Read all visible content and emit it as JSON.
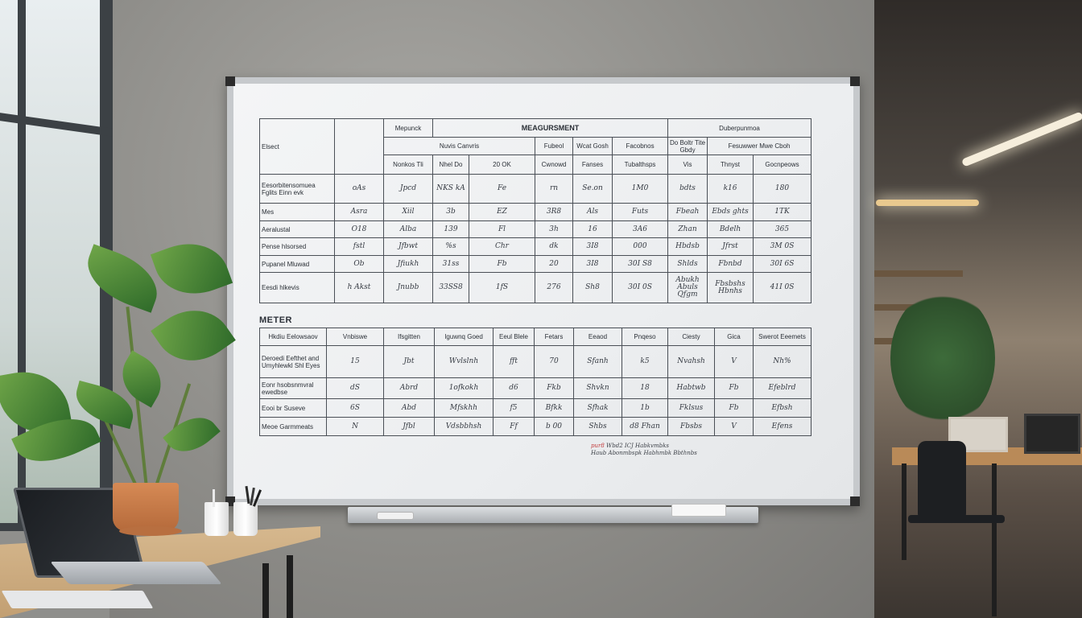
{
  "scene": {
    "colors": {
      "wall": "#8f8e8a",
      "board": "#eef0f2",
      "frame": "#c6c9cc",
      "plant": "#4f8f3a",
      "pot": "#c97b48",
      "desk": "#cfae82"
    },
    "icons": [
      "whiteboard",
      "plant",
      "laptop",
      "pen-cup",
      "marker",
      "eraser",
      "office-chair"
    ]
  },
  "table1": {
    "header_top": [
      "Mepunck",
      "MEAGURSMENT",
      "Duberpunmoa"
    ],
    "header_mid": [
      "Nuvis Canvris",
      "Fubeol",
      "Wcat Gosh",
      "Facobnos",
      "Do Boltr Tite Gbdy",
      "Fesuwwer Mwe Cboh"
    ],
    "header_bottom": [
      "Nonkos Tli",
      "Nhel Do",
      "20 OK",
      "Cwnowd",
      "Fanses",
      "Tubalthsps",
      "Vis",
      "Thnyst",
      "Gocnpeows"
    ],
    "corner_label": "Elsect",
    "rows": [
      {
        "label": "Eesorbitensomuea Fglits Einn evk",
        "cells": [
          "oAs",
          "Jpcd",
          "NKS kA",
          "Fe",
          "rn",
          "Se.on",
          "1M0",
          "bdts",
          "k16",
          "180"
        ]
      },
      {
        "label": "Mes",
        "cells": [
          "Asra",
          "Xiil",
          "3b",
          "EZ",
          "3R8",
          "Als",
          "Futs",
          "Fbeah",
          "Ebds ghts",
          "1TK"
        ]
      },
      {
        "label": "Aeralustal",
        "cells": [
          "O18",
          "Alba",
          "139",
          "Fl",
          "3h",
          "16",
          "3A6",
          "Zhan",
          "Bdelh",
          "365"
        ]
      },
      {
        "label": "Pense hlsorsed",
        "cells": [
          "fstl",
          "Jfbwt",
          "%s",
          "Chr",
          "dk",
          "3I8",
          "000",
          "Hbdsb",
          "Jfrst",
          "3M 0S"
        ]
      },
      {
        "label": "Pupanel Mluwad",
        "cells": [
          "Ob",
          "Jfiukh",
          "31ss",
          "Fb",
          "20",
          "3I8",
          "30I S8",
          "Shlds",
          "Fbnbd",
          "30I 6S"
        ]
      },
      {
        "label": "Eesdi hlkevis",
        "cells": [
          "h Akst",
          "Jnubb",
          "33SS8",
          "1fS",
          "276",
          "Sh8",
          "30I 0S",
          "Abukh Abuls Qfgm",
          "Fbsbshs Hbnhs",
          "41I 0S"
        ]
      }
    ]
  },
  "table2": {
    "title": "METER",
    "headers": [
      "Hkdiu Eelowsaov",
      "Vnbiswe",
      "Ifsgitten",
      "Iguwnq Goed",
      "Eeul Blele",
      "Fetars",
      "Eeaod",
      "Pnqeso",
      "Ciesty",
      "Gica",
      "Swerot Eeemets"
    ],
    "rows": [
      {
        "label": "Deroedi Eefthet and Umyhlewkl Shl Eyes",
        "cells": [
          "15",
          "Jbt",
          "Wvlslnh",
          "fft",
          "70",
          "Sfanh",
          "k5",
          "Nvahsh",
          "V",
          "Nh%"
        ]
      },
      {
        "label": "Eonr hsobsnmvral ewedbse",
        "cells": [
          "dS",
          "Abrd",
          "1ofkokh",
          "d6",
          "Fkb",
          "Shvkn",
          "18",
          "Habtwb",
          "Fb",
          "Efeblrd"
        ]
      },
      {
        "label": "Eooi br Suseve",
        "cells": [
          "6S",
          "Abd",
          "Mfskhh",
          "f5",
          "Bfkk",
          "Sfhak",
          "1b",
          "Fklsus",
          "Fb",
          "Efbsh"
        ]
      },
      {
        "label": "Meoe Garmmeats",
        "cells": [
          "N",
          "Jfbl",
          "Vdsbbhsh",
          "Ff",
          "b 00",
          "Shbs",
          "d8 Fhan",
          "Fbsbs",
          "V",
          "Efens"
        ]
      }
    ]
  },
  "scribble": {
    "line1_a": "pur8",
    "line1_b": "Wbd2 ICJ",
    "line1_c": "Habkvmbks",
    "line2_a": "Haub",
    "line2_b": "Abonmbspk",
    "line2_c": "Habhmbk Bbthnbs"
  }
}
